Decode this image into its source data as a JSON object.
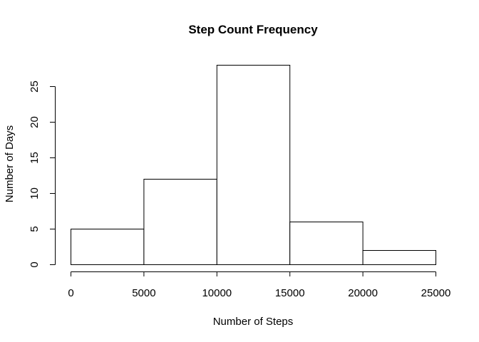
{
  "chart_data": {
    "type": "bar",
    "subtype": "histogram",
    "title": "Step Count Frequency",
    "xlabel": "Number of Steps",
    "ylabel": "Number of Days",
    "bins": [
      {
        "from": 0,
        "to": 5000,
        "count": 5
      },
      {
        "from": 5000,
        "to": 10000,
        "count": 12
      },
      {
        "from": 10000,
        "to": 15000,
        "count": 28
      },
      {
        "from": 15000,
        "to": 20000,
        "count": 6
      },
      {
        "from": 20000,
        "to": 25000,
        "count": 2
      }
    ],
    "xlim": [
      0,
      25000
    ],
    "ylim": [
      0,
      28
    ],
    "x_ticks": [
      "0",
      "5000",
      "10000",
      "15000",
      "20000",
      "25000"
    ],
    "y_ticks": [
      "0",
      "5",
      "10",
      "15",
      "20",
      "25"
    ],
    "grid": false,
    "bar_fill": "#ffffff",
    "bar_stroke": "#000000"
  }
}
